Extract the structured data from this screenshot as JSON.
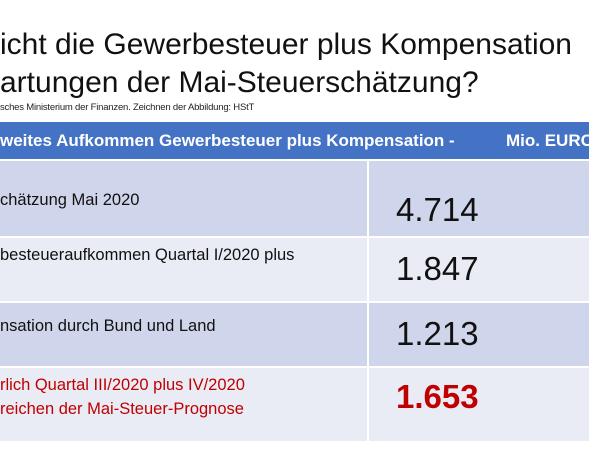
{
  "title": {
    "line1": "icht die Gewerbesteuer plus Kompensation",
    "line2": "artungen der Mai-Steuerschätzung?"
  },
  "source": "sches Ministerium der Finanzen. Zeichnen der Abbildung: HStT",
  "table": {
    "header": [
      "weites Aufkommen Gewerbesteuer plus Kompensation -",
      "Mio. EURO"
    ],
    "rows": [
      {
        "label": [
          "chätzung Mai 2020"
        ],
        "value": "4.714"
      },
      {
        "label": [
          "besteueraufkommen Quartal I/2020 plus"
        ],
        "value": "1.847"
      },
      {
        "label": [
          "nsation durch Bund und Land"
        ],
        "value": "1.213"
      },
      {
        "label": [
          "rlich Quartal III/2020 plus IV/2020",
          "reichen der Mai-Steuer-Prognose"
        ],
        "value": "1.653"
      }
    ]
  }
}
